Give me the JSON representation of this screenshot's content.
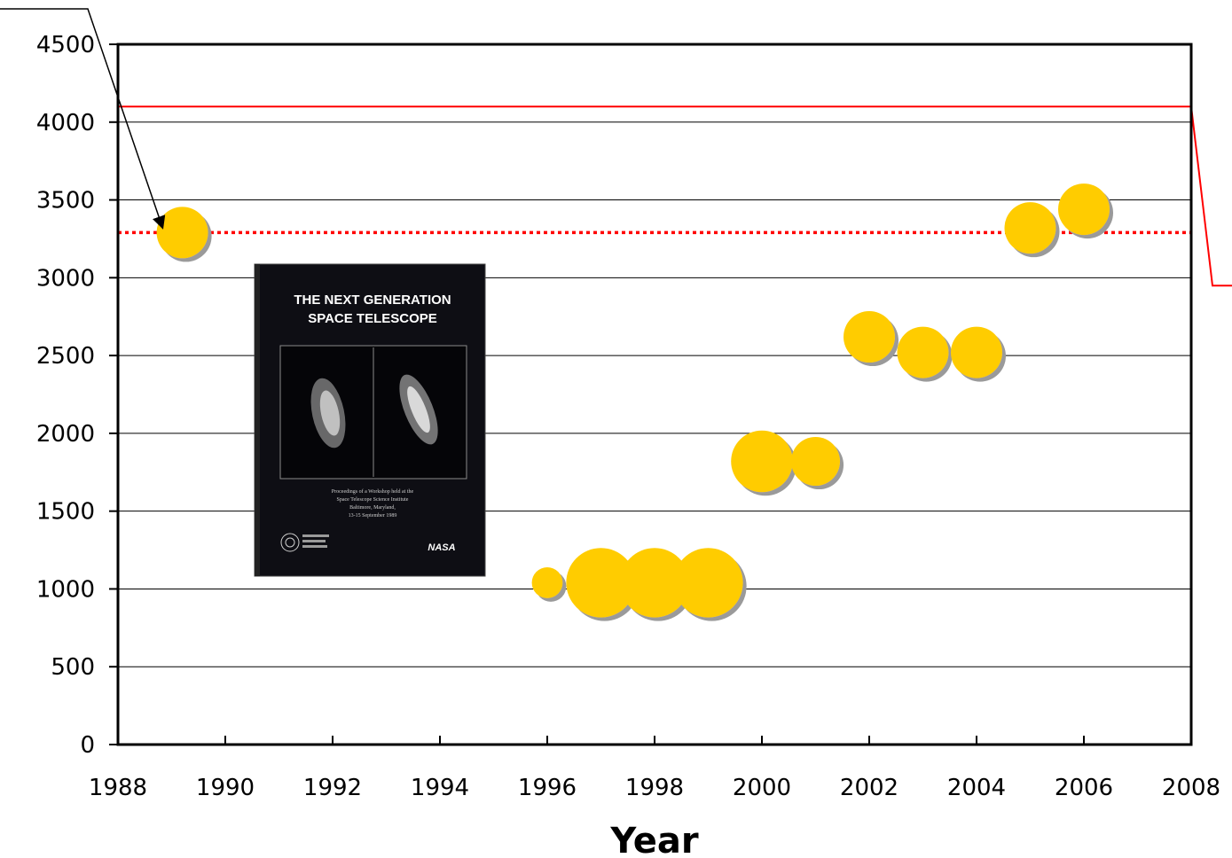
{
  "chart_data": {
    "type": "scatter",
    "title": "",
    "xlabel": "Year",
    "ylabel": "",
    "xlim": [
      1988,
      2008
    ],
    "ylim": [
      0,
      4500
    ],
    "xticks": [
      "1988",
      "1990",
      "1992",
      "1994",
      "1996",
      "1998",
      "2000",
      "2002",
      "2004",
      "2006",
      "2008"
    ],
    "yticks": [
      "0",
      "500",
      "1000",
      "1500",
      "2000",
      "2500",
      "3000",
      "3500",
      "4000",
      "4500"
    ],
    "grid": "horizontal",
    "marker_color": "#ffcc00",
    "points": [
      {
        "x": 1989.2,
        "y": 3290,
        "size": 1.0
      },
      {
        "x": 1996,
        "y": 1040,
        "size": 0.6
      },
      {
        "x": 1997,
        "y": 1040,
        "size": 1.35
      },
      {
        "x": 1998,
        "y": 1040,
        "size": 1.35
      },
      {
        "x": 1999,
        "y": 1040,
        "size": 1.35
      },
      {
        "x": 2000,
        "y": 1820,
        "size": 1.2
      },
      {
        "x": 2001,
        "y": 1820,
        "size": 0.95
      },
      {
        "x": 2002,
        "y": 2620,
        "size": 1.0
      },
      {
        "x": 2003,
        "y": 2520,
        "size": 1.0
      },
      {
        "x": 2004,
        "y": 2520,
        "size": 1.0
      },
      {
        "x": 2005,
        "y": 3320,
        "size": 1.0
      },
      {
        "x": 2006,
        "y": 3440,
        "size": 1.0
      }
    ],
    "reference_lines": [
      {
        "style": "solid",
        "color": "#ff0000",
        "y": 4100,
        "x_start": 1988,
        "x_end": 2008
      },
      {
        "style": "dotted",
        "color": "#ff0000",
        "y": 3290,
        "x_start": 1988,
        "x_end": 2008
      }
    ],
    "inset_image": {
      "title_line1": "THE NEXT GENERATION",
      "title_line2": "SPACE TELESCOPE",
      "caption_lines": [
        "Proceedings of a Workshop held at the",
        "Space Telescope Science Institute",
        "Baltimore, Maryland,",
        "13-15 September 1989"
      ],
      "logo_text": "NASA"
    }
  }
}
